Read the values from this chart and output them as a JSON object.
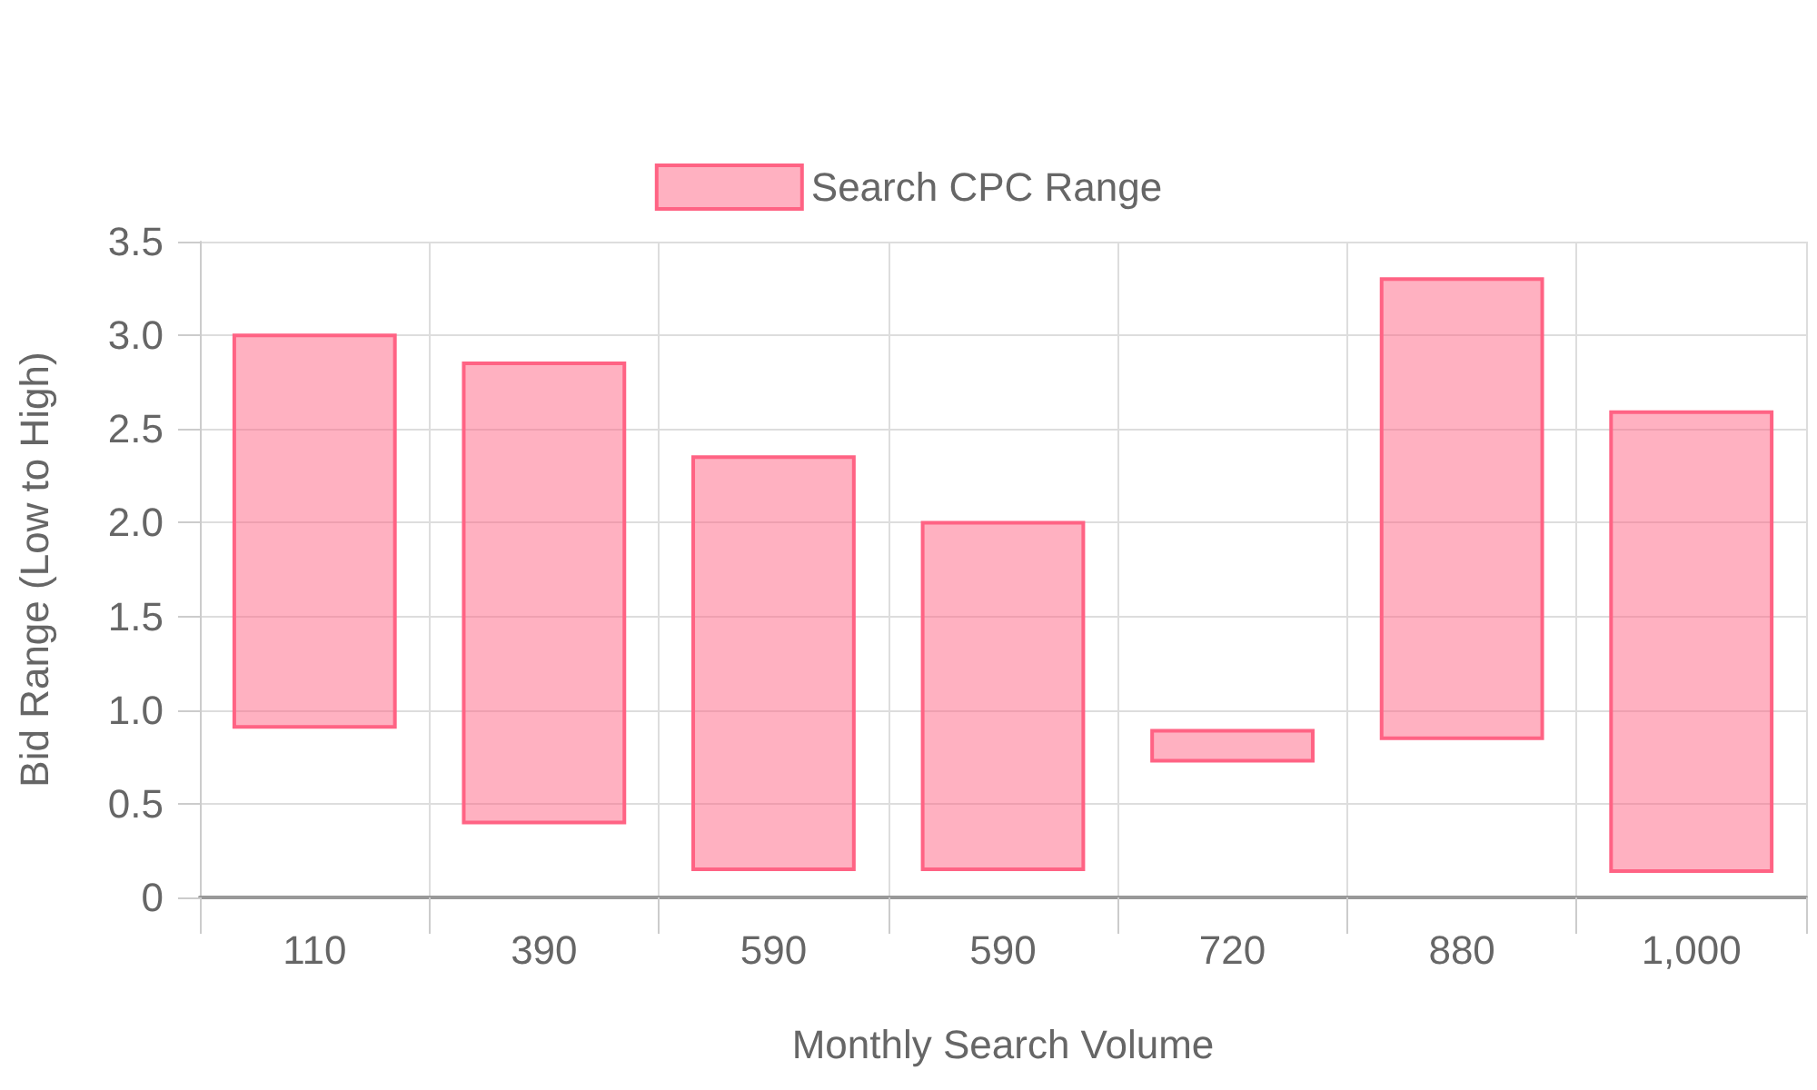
{
  "chart_data": {
    "type": "bar",
    "xlabel": "Monthly Search Volume",
    "ylabel": "Bid Range (Low to High)",
    "categories": [
      "110",
      "390",
      "590",
      "590",
      "720",
      "880",
      "1,000"
    ],
    "series": [
      {
        "name": "Search CPC Range",
        "color": "#ff6384",
        "values": [
          2.09,
          2.45,
          2.2,
          1.85,
          0.16,
          2.45,
          2.45
        ],
        "base": [
          0.91,
          0.4,
          0.15,
          0.15,
          0.73,
          0.85,
          0.14
        ]
      }
    ],
    "ylim": [
      0,
      3.5
    ],
    "yticks": [
      0,
      {
        "value": 0.5,
        "label": "0.5"
      },
      {
        "value": 1,
        "label": "1.0"
      },
      {
        "value": 1.5,
        "label": "1.5"
      },
      {
        "value": 2,
        "label": "2.0"
      },
      {
        "value": 2.5,
        "label": "2.5"
      },
      {
        "value": 3,
        "label": "3.0"
      },
      {
        "value": 3.5,
        "label": "3.5"
      }
    ],
    "grid": true,
    "legend": "top"
  }
}
